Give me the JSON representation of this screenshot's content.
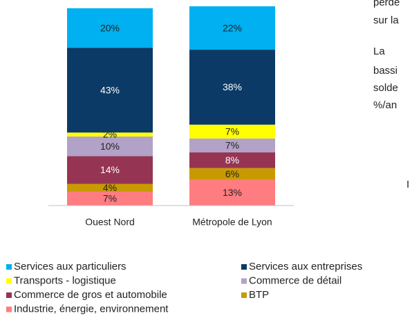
{
  "chart_data": {
    "type": "stacked_bar",
    "categories": [
      "Ouest Nord",
      "Métropole de Lyon"
    ],
    "ylim": [
      0,
      100
    ],
    "series": [
      {
        "name": "Industrie, énergie, environnement",
        "color": "#ff7c80",
        "label_color": "#222222",
        "values": [
          7,
          13
        ],
        "value_labels": [
          "7%",
          "13%"
        ]
      },
      {
        "name": "BTP",
        "color": "#c89a00",
        "label_color": "#222222",
        "values": [
          4,
          6
        ],
        "value_labels": [
          "4%",
          "6%"
        ]
      },
      {
        "name": "Commerce de gros et automobile",
        "color": "#953553",
        "label_color": "#ffffff",
        "values": [
          14,
          8
        ],
        "value_labels": [
          "14%",
          "8%"
        ]
      },
      {
        "name": "Commerce de détail",
        "color": "#b3a2c7",
        "label_color": "#222222",
        "values": [
          10,
          7
        ],
        "value_labels": [
          "10%",
          "7%"
        ]
      },
      {
        "name": "Transports - logistique",
        "color": "#ffff00",
        "label_color": "#222222",
        "values": [
          2,
          7
        ],
        "value_labels": [
          "2%",
          "7%"
        ]
      },
      {
        "name": "Services aux entreprises",
        "color": "#0b3a66",
        "label_color": "#ffffff",
        "values": [
          43,
          38
        ],
        "value_labels": [
          "43%",
          "38%"
        ]
      },
      {
        "name": "Services aux particuliers",
        "color": "#00b0f0",
        "label_color": "#222222",
        "values": [
          20,
          22
        ],
        "value_labels": [
          "20%",
          "22%"
        ]
      }
    ]
  },
  "side_text": [
    "perde",
    "sur la",
    "La",
    "bassi",
    "solde",
    "%/an",
    "I"
  ]
}
